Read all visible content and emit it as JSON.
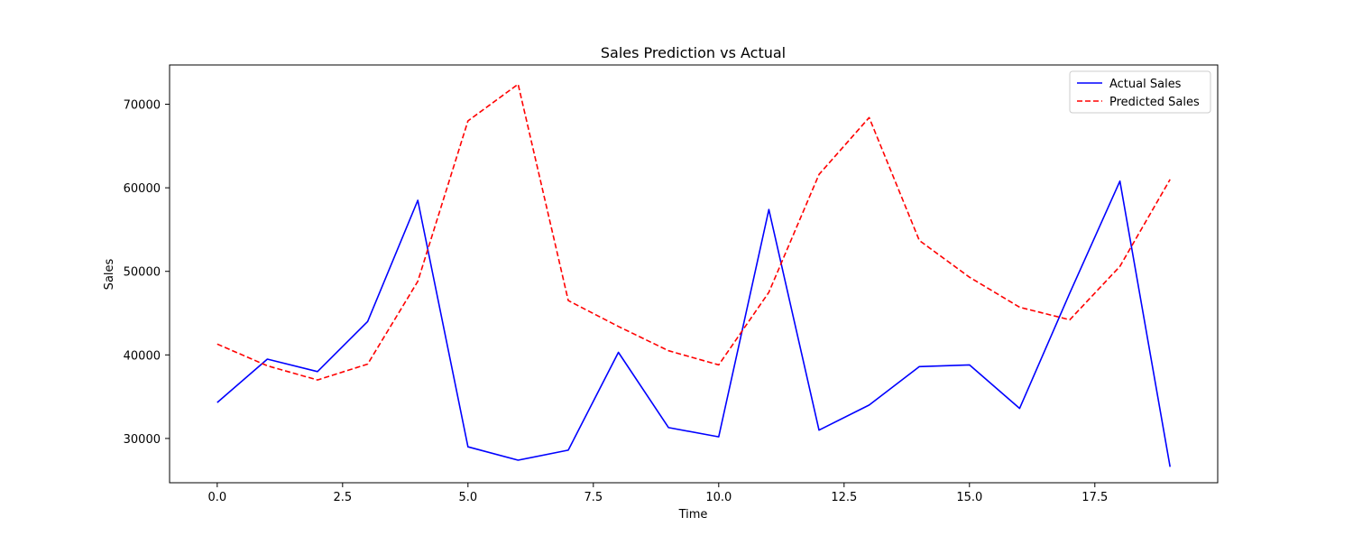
{
  "chart_data": {
    "type": "line",
    "title": "Sales Prediction vs Actual",
    "xlabel": "Time",
    "ylabel": "Sales",
    "xlim": [
      -0.95,
      19.95
    ],
    "ylim": [
      24700,
      74700
    ],
    "x_ticks": [
      0,
      2.5,
      5,
      7.5,
      10,
      12.5,
      15,
      17.5
    ],
    "x_tick_labels": [
      "0.0",
      "2.5",
      "5.0",
      "7.5",
      "10.0",
      "12.5",
      "15.0",
      "17.5"
    ],
    "y_ticks": [
      30000,
      40000,
      50000,
      60000,
      70000
    ],
    "y_tick_labels": [
      "30000",
      "40000",
      "50000",
      "60000",
      "70000"
    ],
    "grid": false,
    "legend_position": "upper right",
    "x": [
      0,
      1,
      2,
      3,
      4,
      5,
      6,
      7,
      8,
      9,
      10,
      11,
      12,
      13,
      14,
      15,
      16,
      17,
      18,
      19
    ],
    "series": [
      {
        "name": "Actual Sales",
        "color": "#0000ff",
        "line_style": "solid",
        "values": [
          34300,
          39500,
          38000,
          44000,
          58500,
          29000,
          27400,
          28600,
          40300,
          31300,
          30200,
          57400,
          31000,
          34000,
          38600,
          38800,
          33600,
          47400,
          60800,
          26600
        ]
      },
      {
        "name": "Predicted Sales",
        "color": "#ff0000",
        "line_style": "dashed",
        "values": [
          41300,
          38700,
          37000,
          38900,
          48800,
          68000,
          72400,
          46500,
          43400,
          40500,
          38800,
          47500,
          61600,
          68400,
          53700,
          49300,
          45700,
          44200,
          50600,
          61000
        ]
      }
    ]
  }
}
